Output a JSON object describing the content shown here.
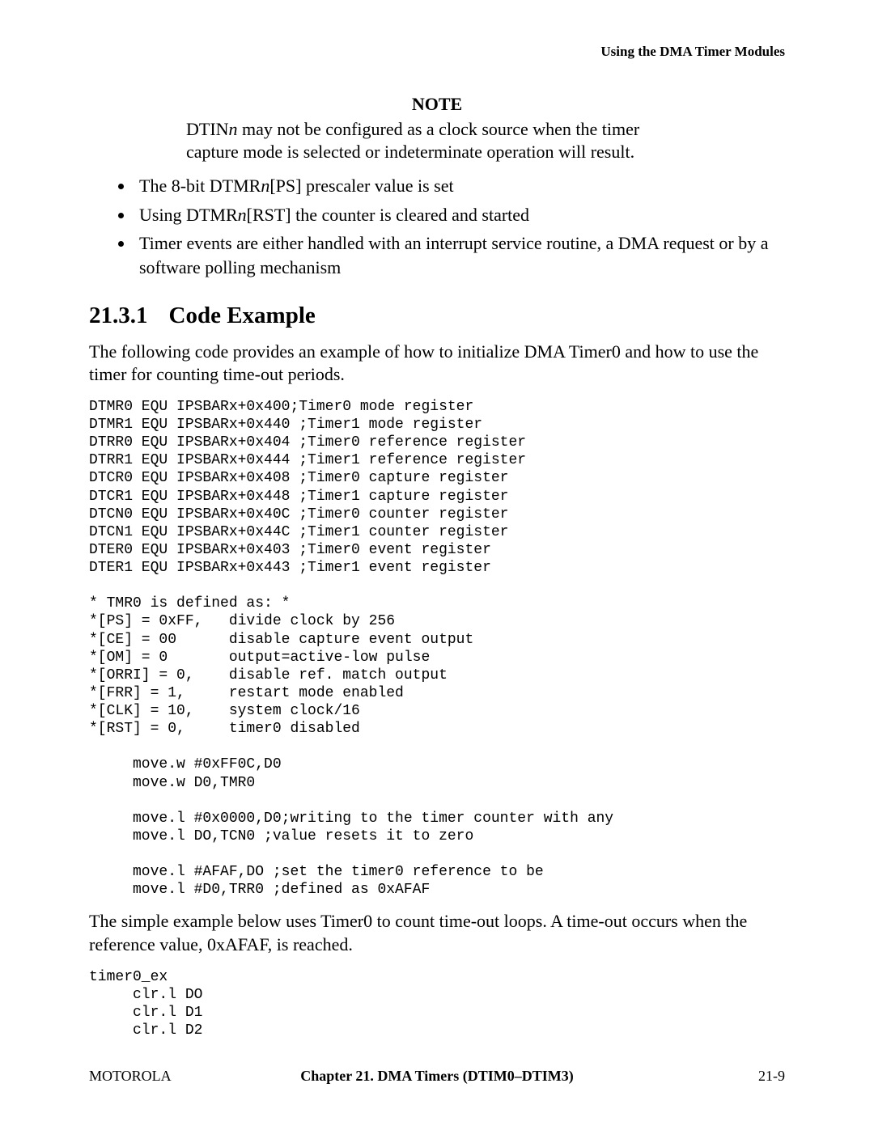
{
  "header": {
    "running_title": "Using the DMA Timer Modules"
  },
  "note": {
    "heading": "NOTE",
    "body_prefix": "DTIN",
    "body_italic": "n",
    "body_rest": " may not be configured as a clock source when the timer capture mode is selected or indeterminate operation will result."
  },
  "bullets": {
    "b1_pre": "The 8-bit DTMR",
    "b1_italic": "n",
    "b1_post": "[PS] prescaler value is set",
    "b2_pre": "Using DTMR",
    "b2_italic": "n",
    "b2_post": "[RST] the counter is cleared and started",
    "b3": "Timer events are either handled with an interrupt service routine, a DMA request or by a software polling mechanism"
  },
  "section": {
    "number": "21.3.1",
    "title": "Code Example"
  },
  "intro": "The following code provides an example of how to initialize DMA Timer0 and how to use the timer for counting time-out periods.",
  "code1": "DTMR0 EQU IPSBARx+0x400;Timer0 mode register\nDTMR1 EQU IPSBARx+0x440 ;Timer1 mode register\nDTRR0 EQU IPSBARx+0x404 ;Timer0 reference register\nDTRR1 EQU IPSBARx+0x444 ;Timer1 reference register\nDTCR0 EQU IPSBARx+0x408 ;Timer0 capture register\nDTCR1 EQU IPSBARx+0x448 ;Timer1 capture register\nDTCN0 EQU IPSBARx+0x40C ;Timer0 counter register\nDTCN1 EQU IPSBARx+0x44C ;Timer1 counter register\nDTER0 EQU IPSBARx+0x403 ;Timer0 event register\nDTER1 EQU IPSBARx+0x443 ;Timer1 event register\n\n* TMR0 is defined as: *\n*[PS] = 0xFF,   divide clock by 256\n*[CE] = 00      disable capture event output\n*[OM] = 0       output=active-low pulse\n*[ORRI] = 0,    disable ref. match output\n*[FRR] = 1,     restart mode enabled\n*[CLK] = 10,    system clock/16\n*[RST] = 0,     timer0 disabled\n\n     move.w #0xFF0C,D0\n     move.w D0,TMR0\n\n     move.l #0x0000,D0;writing to the timer counter with any\n     move.l DO,TCN0 ;value resets it to zero\n\n     move.l #AFAF,DO ;set the timer0 reference to be\n     move.l #D0,TRR0 ;defined as 0xAFAF",
  "para2": "The simple example below uses Timer0 to count time-out loops. A time-out occurs when the reference value, 0xAFAF, is reached.",
  "code2": "timer0_ex\n     clr.l DO\n     clr.l D1\n     clr.l D2",
  "footer": {
    "left": "MOTOROLA",
    "center": "Chapter 21.  DMA Timers (DTIM0–DTIM3)",
    "right": "21-9"
  }
}
